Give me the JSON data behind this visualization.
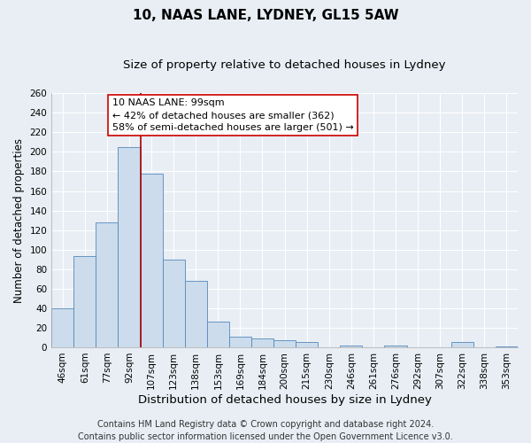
{
  "title": "10, NAAS LANE, LYDNEY, GL15 5AW",
  "subtitle": "Size of property relative to detached houses in Lydney",
  "xlabel": "Distribution of detached houses by size in Lydney",
  "ylabel": "Number of detached properties",
  "categories": [
    "46sqm",
    "61sqm",
    "77sqm",
    "92sqm",
    "107sqm",
    "123sqm",
    "138sqm",
    "153sqm",
    "169sqm",
    "184sqm",
    "200sqm",
    "215sqm",
    "230sqm",
    "246sqm",
    "261sqm",
    "276sqm",
    "292sqm",
    "307sqm",
    "322sqm",
    "338sqm",
    "353sqm"
  ],
  "values": [
    40,
    93,
    128,
    205,
    178,
    90,
    68,
    26,
    11,
    9,
    7,
    5,
    0,
    2,
    0,
    2,
    0,
    0,
    5,
    0,
    1
  ],
  "bar_color": "#ccdcec",
  "bar_edge_color": "#5588bb",
  "vline_x_index": 3,
  "vline_color": "#aa0000",
  "ylim": [
    0,
    260
  ],
  "yticks": [
    0,
    20,
    40,
    60,
    80,
    100,
    120,
    140,
    160,
    180,
    200,
    220,
    240,
    260
  ],
  "annotation_title": "10 NAAS LANE: 99sqm",
  "annotation_line1": "← 42% of detached houses are smaller (362)",
  "annotation_line2": "58% of semi-detached houses are larger (501) →",
  "annotation_box_facecolor": "#ffffff",
  "annotation_box_edgecolor": "#cc0000",
  "footer_line1": "Contains HM Land Registry data © Crown copyright and database right 2024.",
  "footer_line2": "Contains public sector information licensed under the Open Government Licence v3.0.",
  "background_color": "#e8eef4",
  "grid_color": "#ffffff",
  "title_fontsize": 11,
  "subtitle_fontsize": 9.5,
  "xlabel_fontsize": 9.5,
  "ylabel_fontsize": 8.5,
  "tick_fontsize": 7.5,
  "annotation_fontsize": 8,
  "footer_fontsize": 7
}
